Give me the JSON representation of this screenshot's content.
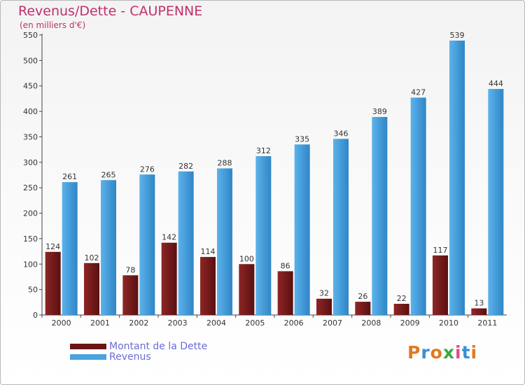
{
  "title": "Revenus/Dette - CAUPENNE",
  "subtitle": "(en milliers d'€)",
  "chart_data": {
    "type": "bar",
    "categories": [
      "2000",
      "2001",
      "2002",
      "2003",
      "2004",
      "2005",
      "2006",
      "2007",
      "2008",
      "2009",
      "2010",
      "2011"
    ],
    "series": [
      {
        "name": "Montant de la Dette",
        "color": "#7a1c1c",
        "values": [
          124,
          102,
          78,
          142,
          114,
          100,
          86,
          32,
          26,
          22,
          117,
          13
        ]
      },
      {
        "name": "Revenus",
        "color": "#4aa3df",
        "values": [
          261,
          265,
          276,
          282,
          288,
          312,
          335,
          346,
          389,
          427,
          539,
          444
        ]
      }
    ],
    "ylim": [
      0,
      550
    ],
    "yticks": [
      0,
      50,
      100,
      150,
      200,
      250,
      300,
      350,
      400,
      450,
      500,
      550
    ],
    "grid": false,
    "legend": "bottom-left"
  },
  "logo": {
    "letters": [
      "P",
      "r",
      "o",
      "x",
      "i",
      "t",
      "i"
    ],
    "colors": [
      "#e07a20",
      "#3a8fd6",
      "#e07a20",
      "#3aa840",
      "#e04a8a",
      "#3a8fd6",
      "#e07a20"
    ]
  }
}
